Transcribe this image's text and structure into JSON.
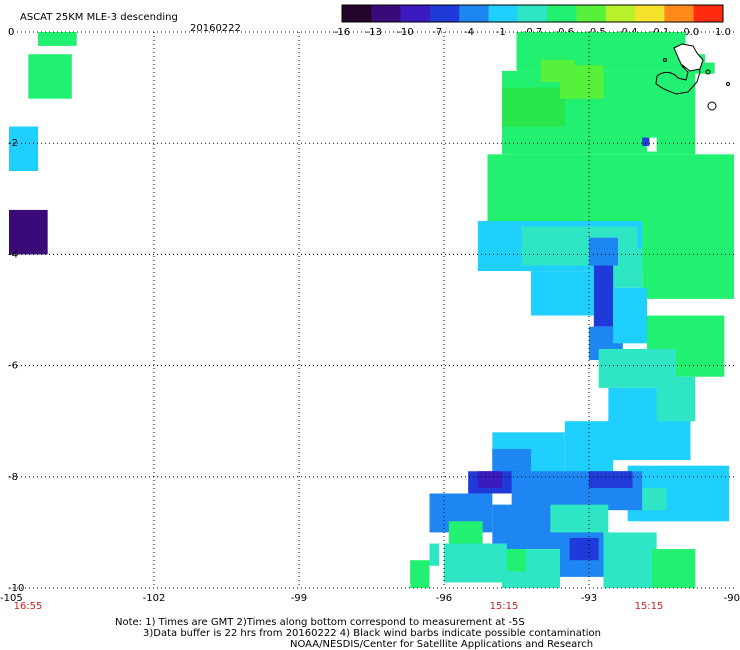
{
  "chart_data": {
    "type": "heatmap",
    "title": "ASCAT 25KM MLE-3 descending",
    "date": "20160222",
    "colorbar": {
      "labels": [
        "-16",
        "-13",
        "-10",
        "-7",
        "-4",
        "-1",
        "-0.7",
        "-0.6",
        "-0.5",
        "-0.4",
        "-0.1",
        "0.0",
        "1.0"
      ],
      "colors": [
        "#23042a",
        "#3a0a78",
        "#3b1ac0",
        "#1f3ad8",
        "#1d86f2",
        "#1fd0ff",
        "#2fe6c4",
        "#22f070",
        "#57f03a",
        "#b8f02a",
        "#f4e22b",
        "#ff8a1b",
        "#ff2a0f"
      ]
    },
    "x_ticks": [
      "-105",
      "-102",
      "-99",
      "-96",
      "-93",
      "-90"
    ],
    "y_ticks": [
      "0",
      "-2",
      "-4",
      "-6",
      "-8",
      "-10"
    ],
    "xlim": [
      -105,
      -90
    ],
    "ylim": [
      -10,
      0
    ],
    "time_labels": [
      {
        "lon": -105,
        "text": "16:55"
      },
      {
        "lon": -96,
        "text": "15:15"
      },
      {
        "lon": -93,
        "text": "15:15"
      }
    ],
    "cells": [
      {
        "lon0": -104.4,
        "lon1": -103.6,
        "lat0": -0.25,
        "lat1": 0.0,
        "color": "#22f070"
      },
      {
        "lon0": -104.6,
        "lon1": -103.7,
        "lat0": -1.2,
        "lat1": -0.4,
        "color": "#22f070"
      },
      {
        "lon0": -105.0,
        "lon1": -104.4,
        "lat0": -2.5,
        "lat1": -1.7,
        "color": "#1fd0ff"
      },
      {
        "lon0": -105.0,
        "lon1": -104.2,
        "lat0": -4.0,
        "lat1": -3.2,
        "color": "#3a0a78"
      },
      {
        "lon0": -94.5,
        "lon1": -91.0,
        "lat0": -0.7,
        "lat1": 0.0,
        "color": "#22f070"
      },
      {
        "lon0": -94.8,
        "lon1": -90.8,
        "lat0": -2.2,
        "lat1": -0.7,
        "color": "#22f070"
      },
      {
        "lon0": -94.8,
        "lon1": -93.5,
        "lat0": -1.7,
        "lat1": -1.0,
        "color": "#29e64d"
      },
      {
        "lon0": -93.6,
        "lon1": -92.7,
        "lat0": -1.2,
        "lat1": -0.6,
        "color": "#57f03a"
      },
      {
        "lon0": -94.0,
        "lon1": -93.3,
        "lat0": -0.9,
        "lat1": -0.5,
        "color": "#57f03a"
      },
      {
        "lon0": -91.0,
        "lon1": -90.6,
        "lat0": -0.6,
        "lat1": -0.4,
        "color": "#22f070"
      },
      {
        "lon0": -90.9,
        "lon1": -90.4,
        "lat0": -0.75,
        "lat1": -0.55,
        "color": "#22f070"
      },
      {
        "lon0": -95.1,
        "lon1": -90.0,
        "lat0": -3.5,
        "lat1": -2.2,
        "color": "#22f070"
      },
      {
        "lon0": -91.8,
        "lon1": -91.6,
        "lat0": -2.15,
        "lat1": -1.9,
        "color": "#ffffff"
      },
      {
        "lon0": -91.9,
        "lon1": -91.75,
        "lat0": -2.05,
        "lat1": -1.9,
        "color": "#1f3ad8"
      },
      {
        "lon0": -94.5,
        "lon1": -93.2,
        "lat0": -2.8,
        "lat1": -2.2,
        "color": "#22f070"
      },
      {
        "lon0": -95.3,
        "lon1": -91.0,
        "lat0": -4.3,
        "lat1": -3.4,
        "color": "#1fd0ff"
      },
      {
        "lon0": -94.4,
        "lon1": -92.0,
        "lat0": -4.2,
        "lat1": -3.5,
        "color": "#2fe6c4"
      },
      {
        "lon0": -91.9,
        "lon1": -90.0,
        "lat0": -4.8,
        "lat1": -3.4,
        "color": "#22f070"
      },
      {
        "lon0": -92.6,
        "lon1": -91.9,
        "lat0": -4.6,
        "lat1": -3.9,
        "color": "#2fe6c4"
      },
      {
        "lon0": -94.2,
        "lon1": -92.9,
        "lat0": -5.1,
        "lat1": -4.3,
        "color": "#1fd0ff"
      },
      {
        "lon0": -93.0,
        "lon1": -92.4,
        "lat0": -4.2,
        "lat1": -3.7,
        "color": "#1d86f2"
      },
      {
        "lon0": -92.9,
        "lon1": -92.5,
        "lat0": -5.3,
        "lat1": -4.2,
        "color": "#1f3ad8"
      },
      {
        "lon0": -93.0,
        "lon1": -92.3,
        "lat0": -5.9,
        "lat1": -5.3,
        "color": "#1d86f2"
      },
      {
        "lon0": -92.5,
        "lon1": -91.8,
        "lat0": -5.6,
        "lat1": -4.6,
        "color": "#1fd0ff"
      },
      {
        "lon0": -91.8,
        "lon1": -90.2,
        "lat0": -6.2,
        "lat1": -5.1,
        "color": "#22f070"
      },
      {
        "lon0": -92.8,
        "lon1": -91.2,
        "lat0": -6.4,
        "lat1": -5.7,
        "color": "#2fe6c4"
      },
      {
        "lon0": -92.6,
        "lon1": -90.9,
        "lat0": -7.7,
        "lat1": -6.4,
        "color": "#1fd0ff"
      },
      {
        "lon0": -91.6,
        "lon1": -90.8,
        "lat0": -7.0,
        "lat1": -6.2,
        "color": "#2fe6c4"
      },
      {
        "lon0": -93.5,
        "lon1": -92.5,
        "lat0": -8.0,
        "lat1": -7.0,
        "color": "#1fd0ff"
      },
      {
        "lon0": -95.0,
        "lon1": -93.5,
        "lat0": -8.0,
        "lat1": -7.2,
        "color": "#1fd0ff"
      },
      {
        "lon0": -95.0,
        "lon1": -94.2,
        "lat0": -8.0,
        "lat1": -7.5,
        "color": "#1d86f2"
      },
      {
        "lon0": -92.2,
        "lon1": -90.1,
        "lat0": -8.8,
        "lat1": -7.8,
        "color": "#1fd0ff"
      },
      {
        "lon0": -92.3,
        "lon1": -91.4,
        "lat0": -8.6,
        "lat1": -8.2,
        "color": "#2fe6c4"
      },
      {
        "lon0": -95.5,
        "lon1": -94.4,
        "lat0": -8.3,
        "lat1": -7.9,
        "color": "#1f3ad8"
      },
      {
        "lon0": -95.3,
        "lon1": -94.8,
        "lat0": -8.2,
        "lat1": -7.9,
        "color": "#3b1ac0"
      },
      {
        "lon0": -94.6,
        "lon1": -91.9,
        "lat0": -8.6,
        "lat1": -7.9,
        "color": "#1d86f2"
      },
      {
        "lon0": -93.0,
        "lon1": -92.1,
        "lat0": -8.2,
        "lat1": -7.9,
        "color": "#1f3ad8"
      },
      {
        "lon0": -95.0,
        "lon1": -92.7,
        "lat0": -9.3,
        "lat1": -8.5,
        "color": "#1d86f2"
      },
      {
        "lon0": -93.8,
        "lon1": -92.6,
        "lat0": -9.0,
        "lat1": -8.5,
        "color": "#2fe6c4"
      },
      {
        "lon0": -96.3,
        "lon1": -95.0,
        "lat0": -9.0,
        "lat1": -8.3,
        "color": "#1d86f2"
      },
      {
        "lon0": -95.9,
        "lon1": -95.2,
        "lat0": -9.4,
        "lat1": -8.8,
        "color": "#22f070"
      },
      {
        "lon0": -96.0,
        "lon1": -94.7,
        "lat0": -9.9,
        "lat1": -9.2,
        "color": "#2fe6c4"
      },
      {
        "lon0": -94.8,
        "lon1": -93.6,
        "lat0": -10.0,
        "lat1": -9.3,
        "color": "#2fe6c4"
      },
      {
        "lon0": -93.6,
        "lon1": -92.5,
        "lat0": -9.8,
        "lat1": -9.1,
        "color": "#1d86f2"
      },
      {
        "lon0": -93.4,
        "lon1": -92.8,
        "lat0": -9.5,
        "lat1": -9.1,
        "color": "#1f3ad8"
      },
      {
        "lon0": -92.7,
        "lon1": -91.6,
        "lat0": -10.0,
        "lat1": -9.0,
        "color": "#2fe6c4"
      },
      {
        "lon0": -91.7,
        "lon1": -90.8,
        "lat0": -10.0,
        "lat1": -9.3,
        "color": "#22f070"
      },
      {
        "lon0": -96.7,
        "lon1": -96.3,
        "lat0": -10.0,
        "lat1": -9.5,
        "color": "#22f070"
      },
      {
        "lon0": -96.3,
        "lon1": -96.1,
        "lat0": -9.6,
        "lat1": -9.2,
        "color": "#2fe6c4"
      },
      {
        "lon0": -94.7,
        "lon1": -94.3,
        "lat0": -9.7,
        "lat1": -9.3,
        "color": "#22f070"
      },
      {
        "lon0": -95.9,
        "lon1": -95.3,
        "lat0": -9.4,
        "lat1": -9.2,
        "color": "#2fe6c4"
      }
    ]
  },
  "notes": {
    "line1": "Note: 1) Times are GMT 2)Times along bottom correspond to measurement at -5S",
    "line2": "3)Data buffer is 22 hrs from 20160222 4) Black wind barbs indicate possible contamination",
    "line3": "NOAA/NESDIS/Center for Satellite Applications and Research"
  }
}
